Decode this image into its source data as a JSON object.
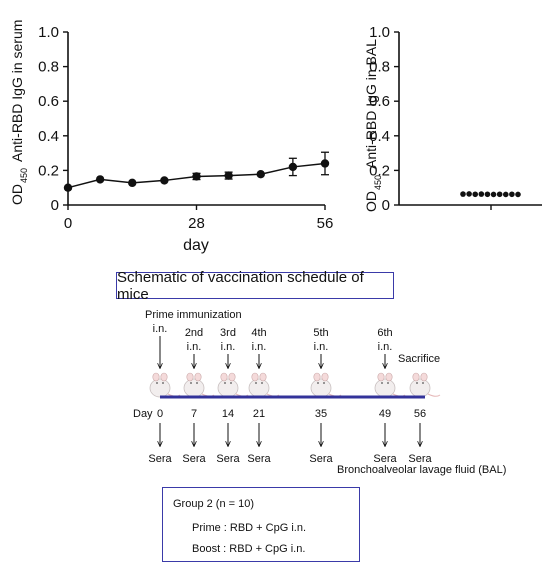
{
  "chart_data": [
    {
      "type": "line",
      "xlabel": "day",
      "ylabel_main": "Anti-RBD IgG in serum",
      "ylabel_prefix": "OD",
      "ylabel_sub": "450",
      "xlim": [
        0,
        56
      ],
      "ylim": [
        0,
        1.0
      ],
      "x_ticks": [
        "0",
        "28",
        "56"
      ],
      "y_ticks": [
        "0",
        "0.2",
        "0.4",
        "0.6",
        "0.8",
        "1.0"
      ],
      "x": [
        0,
        7,
        14,
        21,
        28,
        35,
        42,
        49,
        56
      ],
      "y": [
        0.1,
        0.148,
        0.128,
        0.142,
        0.165,
        0.17,
        0.178,
        0.22,
        0.24
      ],
      "err": [
        0,
        0,
        0,
        0,
        0.018,
        0.02,
        0,
        0.05,
        0.065
      ]
    },
    {
      "type": "scatter",
      "ylabel_main": "Anti-RBD IgG in BAL",
      "ylabel_prefix": "OD",
      "ylabel_sub": "450",
      "ylim": [
        0,
        1.0
      ],
      "y_ticks": [
        "0",
        "0.2",
        "0.4",
        "0.6",
        "0.8",
        "1.0"
      ],
      "points": [
        0.063,
        0.064,
        0.062,
        0.063,
        0.062,
        0.061,
        0.062,
        0.061,
        0.062,
        0.061
      ]
    }
  ],
  "schematic": {
    "title": "Schematic of vaccination schedule of mice",
    "events": [
      {
        "label": "Prime immunization",
        "route": "i.n.",
        "day": "0"
      },
      {
        "label": "2nd",
        "route": "i.n.",
        "day": "7"
      },
      {
        "label": "3rd",
        "route": "i.n.",
        "day": "14"
      },
      {
        "label": "4th",
        "route": "i.n.",
        "day": "21"
      },
      {
        "label": "5th",
        "route": "i.n.",
        "day": "35"
      },
      {
        "label": "6th",
        "route": "i.n.",
        "day": "49"
      },
      {
        "label": "Sacrifice",
        "route": "",
        "day": "56"
      }
    ],
    "day_label": "Day",
    "sera_label": "Sera",
    "bal_label": "Bronchoalveolar lavage fluid (BAL)",
    "timeline_color": "#33339a",
    "box_color": "#3a3aa8"
  },
  "group": {
    "title": "Group 2 (n = 10)",
    "prime": "Prime : RBD + CpG i.n.",
    "boost": "Boost : RBD + CpG i.n."
  }
}
